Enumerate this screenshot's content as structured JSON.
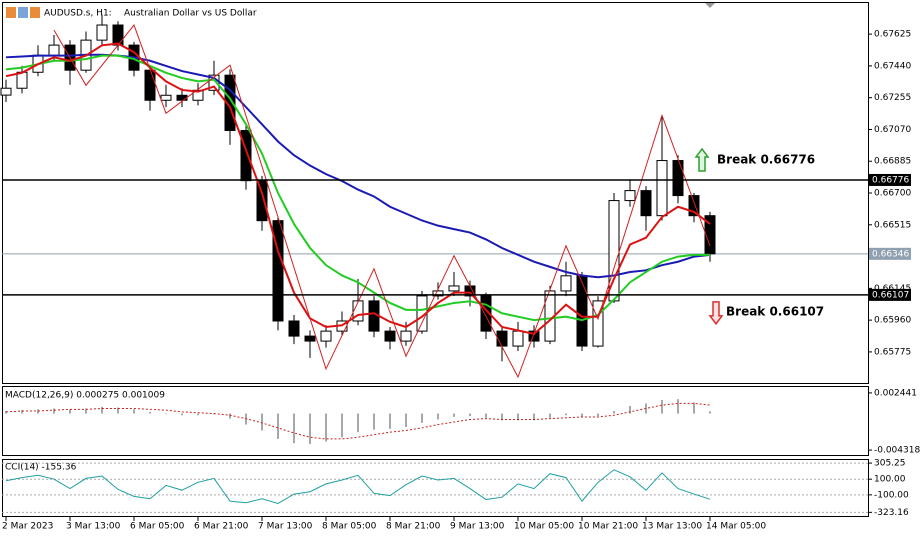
{
  "chart_data": [
    {
      "type": "candlestick",
      "title": "AUDUSD.s, H1:",
      "subtitle": "Australian Dollar vs US Dollar",
      "categories": [
        "2 Mar 2023",
        null,
        null,
        null,
        "3 Mar 13:00",
        null,
        null,
        null,
        "6 Mar 05:00",
        null,
        null,
        null,
        "6 Mar 21:00",
        null,
        null,
        null,
        "7 Mar 13:00",
        null,
        null,
        null,
        "8 Mar 05:00",
        null,
        null,
        null,
        "8 Mar 21:00",
        null,
        null,
        null,
        "9 Mar 13:00",
        null,
        null,
        null,
        "10 Mar 05:00",
        null,
        null,
        null,
        "10 Mar 21:00",
        null,
        null,
        null,
        "13 Mar 13:00",
        null,
        null,
        null,
        "14 Mar 05:00"
      ],
      "open": [
        0.6727,
        0.6731,
        0.67403,
        0.67502,
        0.67561,
        0.67415,
        0.6759,
        0.67678,
        0.67561,
        0.67415,
        0.6724,
        0.67269,
        0.6724,
        0.67298,
        0.67386,
        0.67064,
        0.66772,
        0.66539,
        0.65955,
        0.65867,
        0.65838,
        0.65896,
        0.65955,
        0.66072,
        0.65896,
        0.65838,
        0.65896,
        0.66101,
        0.6613,
        0.66159,
        0.66101,
        0.65896,
        0.65809,
        0.65896,
        0.65838,
        0.6613,
        0.66218,
        0.65809,
        0.66072,
        0.66656,
        0.66714,
        0.66568,
        0.66889,
        0.66685,
        0.66568
      ],
      "high": [
        0.6736,
        0.6744,
        0.6756,
        0.6762,
        0.6759,
        0.6764,
        0.6774,
        0.677,
        0.6758,
        0.6744,
        0.6733,
        0.6731,
        0.6734,
        0.6747,
        0.6742,
        0.6709,
        0.668,
        0.6656,
        0.6599,
        0.659,
        0.6593,
        0.6601,
        0.662,
        0.661,
        0.6592,
        0.6595,
        0.6613,
        0.6618,
        0.6624,
        0.6619,
        0.6612,
        0.6592,
        0.6595,
        0.6593,
        0.6616,
        0.663,
        0.6624,
        0.661,
        0.667,
        0.6678,
        0.6674,
        0.6715,
        0.6692,
        0.667,
        0.6659
      ],
      "low": [
        0.6723,
        0.6728,
        0.6738,
        0.6747,
        0.6733,
        0.674,
        0.6756,
        0.6753,
        0.6738,
        0.6718,
        0.672,
        0.672,
        0.6721,
        0.6727,
        0.6698,
        0.6672,
        0.6648,
        0.659,
        0.6582,
        0.6574,
        0.658,
        0.6587,
        0.6593,
        0.6586,
        0.6579,
        0.6581,
        0.6588,
        0.6608,
        0.661,
        0.6604,
        0.6585,
        0.6572,
        0.6578,
        0.658,
        0.6582,
        0.661,
        0.6578,
        0.658,
        0.6606,
        0.6662,
        0.6648,
        0.6654,
        0.6664,
        0.6653,
        0.663
      ],
      "close": [
        0.6731,
        0.67403,
        0.67502,
        0.67561,
        0.67415,
        0.6759,
        0.67678,
        0.67561,
        0.67415,
        0.6724,
        0.67269,
        0.6724,
        0.67298,
        0.67386,
        0.67064,
        0.66772,
        0.66539,
        0.65955,
        0.65867,
        0.65838,
        0.65896,
        0.65955,
        0.66072,
        0.65896,
        0.65838,
        0.65896,
        0.66101,
        0.6613,
        0.66159,
        0.66101,
        0.65896,
        0.65809,
        0.65896,
        0.65838,
        0.6613,
        0.66218,
        0.65809,
        0.66072,
        0.66656,
        0.66714,
        0.66568,
        0.66889,
        0.66685,
        0.66568,
        0.66346
      ],
      "up_color": "#ffffff",
      "down_color": "#000000",
      "series": [
        {
          "color": "#1a1ab5",
          "values": [
            0.6749,
            0.67495,
            0.675,
            0.675,
            0.675,
            0.67505,
            0.67505,
            0.675,
            0.6749,
            0.6747,
            0.6744,
            0.6741,
            0.6739,
            0.6737,
            0.673,
            0.672,
            0.671,
            0.67,
            0.6692,
            0.6686,
            0.6681,
            0.6677,
            0.6672,
            0.6668,
            0.6662,
            0.6658,
            0.6654,
            0.6651,
            0.6649,
            0.6647,
            0.6643,
            0.6638,
            0.6634,
            0.663,
            0.6627,
            0.6624,
            0.6622,
            0.6621,
            0.6622,
            0.6624,
            0.6625,
            0.6628,
            0.663,
            0.6633,
            0.6634
          ]
        },
        {
          "color": "#22cc22",
          "values": [
            0.6742,
            0.6743,
            0.6745,
            0.6747,
            0.6747,
            0.6748,
            0.675,
            0.675,
            0.6748,
            0.6744,
            0.674,
            0.6737,
            0.6735,
            0.6736,
            0.6725,
            0.671,
            0.6693,
            0.667,
            0.6652,
            0.6638,
            0.6628,
            0.6622,
            0.6618,
            0.6612,
            0.6606,
            0.6602,
            0.6602,
            0.6604,
            0.6606,
            0.6607,
            0.6605,
            0.66,
            0.6598,
            0.6596,
            0.6597,
            0.6598,
            0.6596,
            0.6599,
            0.6608,
            0.6618,
            0.6624,
            0.663,
            0.6633,
            0.6634,
            0.6634
          ]
        },
        {
          "color": "#dd1111",
          "values": [
            0.6738,
            0.674,
            0.6745,
            0.6749,
            0.6747,
            0.675,
            0.6756,
            0.6757,
            0.6752,
            0.6743,
            0.6735,
            0.673,
            0.6729,
            0.6732,
            0.672,
            0.6695,
            0.667,
            0.6636,
            0.6612,
            0.6597,
            0.6592,
            0.6593,
            0.6599,
            0.66,
            0.6595,
            0.6592,
            0.6598,
            0.6606,
            0.6612,
            0.6612,
            0.6602,
            0.6592,
            0.659,
            0.6588,
            0.6596,
            0.6605,
            0.6598,
            0.6598,
            0.662,
            0.664,
            0.6644,
            0.6656,
            0.6662,
            0.6659,
            0.6652
          ]
        }
      ],
      "zigzag": {
        "color": "#d42020",
        "x": [
          3,
          5,
          8,
          10,
          14,
          20,
          23,
          25,
          28,
          32,
          35,
          37,
          41,
          44
        ],
        "values": [
          0.67648,
          0.67327,
          0.67678,
          0.67164,
          0.67444,
          0.65676,
          0.66259,
          0.6575,
          0.66335,
          0.65629,
          0.66393,
          0.65967,
          0.67152,
          0.66393
        ]
      },
      "levels": [
        {
          "value": 0.66776,
          "label": "Break 0.66776",
          "direction": "up",
          "color": "#2ea02e"
        },
        {
          "value": 0.66107,
          "label": "Break 0.66107",
          "direction": "down",
          "color": "#d93030"
        }
      ],
      "current_price": 0.66346,
      "ylim": [
        0.65594,
        0.67812
      ],
      "yticks": [
        0.67625,
        {
          "value": 0.6744,
          "label": "0.67440"
        },
        0.67255,
        {
          "value": 0.6707,
          "label": "0.67070"
        },
        0.66885,
        {
          "value": 0.667,
          "label": "0.66700"
        },
        0.66515,
        0.66145,
        {
          "value": 0.6596,
          "label": "0.65960"
        },
        0.65775
      ]
    },
    {
      "type": "macd",
      "title": "MACD(12,26,9) 0.000275 0.001009",
      "color": "#a8a8a8",
      "values": [
        0.0003,
        0.0004,
        0.0005,
        0.0006,
        0.0005,
        0.0006,
        0.0008,
        0.0007,
        0.0005,
        0.0002,
        0,
        -0.0002,
        -0.0002,
        -0.0001,
        -0.0006,
        -0.0013,
        -0.002,
        -0.003,
        -0.0035,
        -0.0036,
        -0.0033,
        -0.0028,
        -0.0022,
        -0.0019,
        -0.0018,
        -0.0016,
        -0.0011,
        -0.0007,
        -0.0004,
        -0.0003,
        -0.0005,
        -0.0008,
        -0.0008,
        -0.0008,
        -0.0005,
        -0.0002,
        -0.0004,
        -0.0003,
        0.0003,
        0.0009,
        0.0012,
        0.0016,
        0.0017,
        0.0013,
        0.000275
      ],
      "signal": {
        "color": "#cc2020",
        "values": [
          0.0002,
          0.0003,
          0.0003,
          0.0004,
          0.0005,
          0.0005,
          0.0006,
          0.0006,
          0.0006,
          0.0005,
          0.0004,
          0.0002,
          0.0001,
          0,
          -0.0002,
          -0.0006,
          -0.0011,
          -0.0017,
          -0.0023,
          -0.0028,
          -0.003,
          -0.003,
          -0.0028,
          -0.0025,
          -0.0022,
          -0.002,
          -0.0017,
          -0.0013,
          -0.001,
          -0.0007,
          -0.0006,
          -0.0007,
          -0.0007,
          -0.0007,
          -0.0006,
          -0.0005,
          -0.0004,
          -0.0004,
          -0.0002,
          0.0002,
          0.0006,
          0.001,
          0.0012,
          0.0012,
          0.001009
        ]
      },
      "ylim": [
        -0.0049,
        0.00314
      ],
      "yticks": [
        0.002441,
        -0.004318
      ]
    },
    {
      "type": "line",
      "title": "CCI(14) -155.36",
      "color": "#20a0a0",
      "values": [
        80,
        120,
        150,
        100,
        -20,
        110,
        140,
        -30,
        -120,
        -150,
        20,
        -40,
        60,
        110,
        -180,
        -200,
        -150,
        -210,
        -90,
        -60,
        40,
        90,
        150,
        -80,
        -110,
        30,
        140,
        90,
        110,
        -20,
        -160,
        -130,
        40,
        -20,
        170,
        120,
        -180,
        60,
        220,
        130,
        -40,
        180,
        -20,
        -90,
        -155.36
      ],
      "ylim": [
        -370,
        345
      ],
      "grid": true,
      "yticks": [
        305.25,
        {
          "value": 100,
          "label": "100.00"
        },
        {
          "value": -100,
          "label": "-100.00"
        },
        -323.16
      ]
    }
  ]
}
